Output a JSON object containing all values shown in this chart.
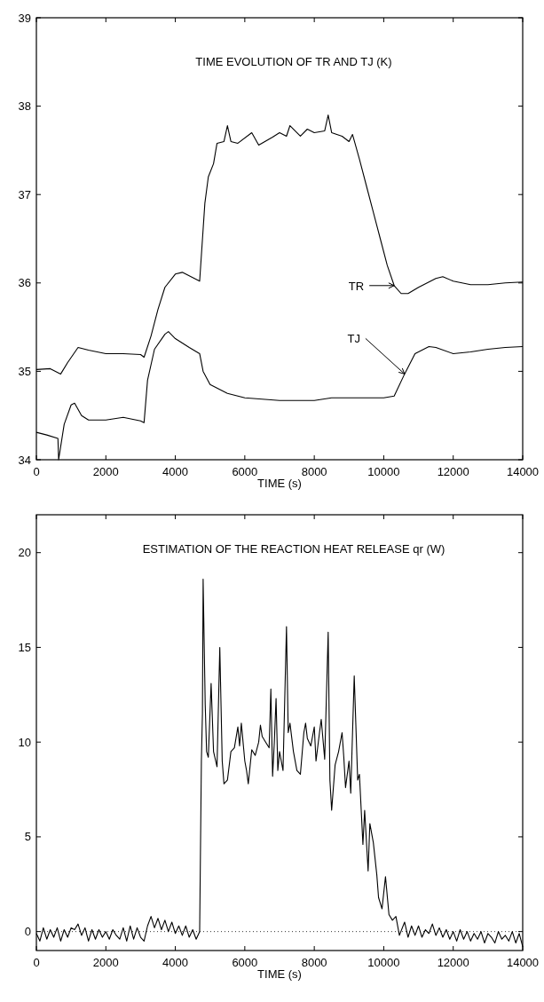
{
  "chart_data": [
    {
      "type": "line",
      "title": "TIME EVOLUTION OF TR AND TJ (K)",
      "xlabel": "TIME (s)",
      "xlim": [
        0,
        14000
      ],
      "xticks": [
        0,
        2000,
        4000,
        6000,
        8000,
        10000,
        12000,
        14000
      ],
      "ylim": [
        34,
        39
      ],
      "yticks": [
        34,
        35,
        36,
        37,
        38,
        39
      ],
      "grid": false,
      "annotations": [
        {
          "text": "TR",
          "x": 10300,
          "y": 35.97
        },
        {
          "text": "TJ",
          "x": 10600,
          "y": 34.97
        }
      ],
      "series": [
        {
          "color": "#000000",
          "x": [
            0,
            400,
            700,
            900,
            1200,
            1500,
            2000,
            2500,
            3000,
            3100,
            3300,
            3500,
            3700,
            4000,
            4200,
            4500,
            4700,
            4850,
            4950,
            5100,
            5200,
            5400,
            5500,
            5600,
            5800,
            6200,
            6400,
            6800,
            7000,
            7200,
            7300,
            7600,
            7800,
            8000,
            8300,
            8400,
            8500,
            8800,
            9000,
            9100,
            9300,
            9500,
            9700,
            9900,
            10100,
            10300,
            10500,
            10700,
            11000,
            11500,
            11700,
            12000,
            12500,
            13000,
            13500,
            14000
          ],
          "values": [
            35.02,
            35.03,
            34.97,
            35.1,
            35.27,
            35.24,
            35.2,
            35.2,
            35.19,
            35.16,
            35.4,
            35.7,
            35.95,
            36.1,
            36.12,
            36.06,
            36.02,
            36.9,
            37.2,
            37.35,
            37.58,
            37.6,
            37.78,
            37.6,
            37.58,
            37.7,
            37.56,
            37.65,
            37.7,
            37.66,
            37.78,
            37.66,
            37.74,
            37.7,
            37.72,
            37.9,
            37.7,
            37.66,
            37.6,
            37.68,
            37.4,
            37.1,
            36.8,
            36.5,
            36.2,
            35.97,
            35.88,
            35.88,
            35.95,
            36.05,
            36.07,
            36.02,
            35.98,
            35.98,
            36.0,
            36.01
          ]
        },
        {
          "color": "#000000",
          "x": [
            0,
            300,
            620,
            640,
            800,
            1000,
            1100,
            1300,
            1500,
            2000,
            2500,
            3000,
            3100,
            3200,
            3400,
            3700,
            3800,
            4000,
            4400,
            4700,
            4800,
            5000,
            5500,
            6000,
            7000,
            8000,
            8500,
            9000,
            10000,
            10300,
            10600,
            10900,
            11300,
            11500,
            12000,
            12500,
            13000,
            13500,
            14000
          ],
          "values": [
            34.31,
            34.28,
            34.24,
            34.0,
            34.4,
            34.62,
            34.64,
            34.5,
            34.45,
            34.45,
            34.48,
            34.44,
            34.42,
            34.9,
            35.25,
            35.42,
            35.45,
            35.37,
            35.27,
            35.2,
            35.0,
            34.85,
            34.75,
            34.7,
            34.67,
            34.67,
            34.7,
            34.7,
            34.7,
            34.72,
            34.97,
            35.2,
            35.28,
            35.27,
            35.2,
            35.22,
            35.25,
            35.27,
            35.28
          ]
        }
      ]
    },
    {
      "type": "line",
      "title": "ESTIMATION OF THE REACTION HEAT RELEASE qr (W)",
      "xlabel": "TIME (s)",
      "xlim": [
        0,
        14000
      ],
      "xticks": [
        0,
        2000,
        4000,
        6000,
        8000,
        10000,
        12000,
        14000
      ],
      "ylim": [
        -1,
        22
      ],
      "yticks": [
        0,
        5,
        10,
        15,
        20
      ],
      "grid": false,
      "ref_lines": [
        {
          "axis": "y",
          "value": 0,
          "label": null,
          "color": "#000000",
          "line_style": "dotted"
        }
      ],
      "series": [
        {
          "color": "#000000",
          "x": [
            0,
            100,
            200,
            300,
            400,
            500,
            600,
            700,
            800,
            900,
            1000,
            1100,
            1200,
            1300,
            1400,
            1500,
            1600,
            1700,
            1800,
            1900,
            2000,
            2100,
            2200,
            2300,
            2400,
            2500,
            2600,
            2700,
            2800,
            2900,
            3000,
            3100,
            3200,
            3300,
            3400,
            3500,
            3600,
            3700,
            3800,
            3900,
            4000,
            4100,
            4200,
            4300,
            4400,
            4500,
            4600,
            4700,
            4750,
            4780,
            4800,
            4860,
            4900,
            4950,
            5030,
            5100,
            5200,
            5280,
            5350,
            5400,
            5500,
            5600,
            5700,
            5800,
            5850,
            5900,
            6000,
            6050,
            6100,
            6200,
            6300,
            6400,
            6450,
            6500,
            6600,
            6700,
            6750,
            6800,
            6850,
            6900,
            6950,
            7000,
            7100,
            7200,
            7250,
            7300,
            7400,
            7500,
            7600,
            7700,
            7750,
            7800,
            7900,
            8000,
            8050,
            8150,
            8200,
            8300,
            8400,
            8450,
            8500,
            8600,
            8700,
            8800,
            8850,
            8900,
            9000,
            9050,
            9150,
            9250,
            9300,
            9400,
            9450,
            9550,
            9600,
            9700,
            9800,
            9850,
            9950,
            10050,
            10150,
            10250,
            10350,
            10450,
            10600,
            10700,
            10800,
            10900,
            11000,
            11100,
            11200,
            11300,
            11400,
            11500,
            11600,
            11700,
            11800,
            11900,
            12000,
            12100,
            12200,
            12300,
            12400,
            12500,
            12600,
            12700,
            12800,
            12900,
            13000,
            13100,
            13200,
            13300,
            13400,
            13500,
            13600,
            13700,
            13800,
            13900,
            14000
          ],
          "values": [
            -0.1,
            -0.5,
            0.2,
            -0.4,
            0.1,
            -0.3,
            0.2,
            -0.5,
            0.1,
            -0.3,
            0.2,
            0.1,
            0.4,
            -0.2,
            0.2,
            -0.5,
            0.1,
            -0.4,
            0.1,
            -0.3,
            0.0,
            -0.4,
            0.1,
            -0.2,
            -0.4,
            0.2,
            -0.5,
            0.3,
            -0.4,
            0.2,
            -0.3,
            -0.5,
            0.3,
            0.8,
            0.2,
            0.7,
            0.1,
            0.6,
            0.0,
            0.5,
            -0.1,
            0.3,
            -0.2,
            0.3,
            -0.3,
            0.1,
            -0.4,
            0.0,
            9.0,
            11.5,
            18.6,
            12,
            9.5,
            9.2,
            13.1,
            9.5,
            8.7,
            15.0,
            9,
            7.8,
            8.0,
            9.5,
            9.7,
            10.8,
            9.8,
            11.0,
            9.0,
            8.5,
            7.8,
            9.6,
            9.3,
            10.0,
            10.9,
            10.3,
            10.0,
            9.7,
            12.8,
            8.2,
            10.0,
            12.3,
            8.5,
            9.5,
            8.5,
            16.1,
            10.5,
            11,
            9.5,
            8.5,
            8.3,
            10.5,
            11.0,
            10.2,
            9.8,
            10.8,
            9.0,
            10.5,
            11.2,
            9.1,
            15.8,
            8.0,
            6.4,
            8.8,
            9.5,
            10.5,
            9.2,
            7.6,
            9.0,
            7.3,
            13.5,
            8.0,
            8.3,
            4.6,
            6.4,
            3.2,
            5.7,
            4.7,
            3.0,
            1.8,
            1.2,
            2.9,
            0.9,
            0.6,
            0.8,
            -0.2,
            0.5,
            -0.3,
            0.3,
            -0.2,
            0.3,
            -0.3,
            0.1,
            -0.1,
            0.4,
            -0.2,
            0.2,
            -0.3,
            0.1,
            -0.4,
            0.0,
            -0.5,
            0.1,
            -0.4,
            0.0,
            -0.5,
            -0.1,
            -0.4,
            0.0,
            -0.6,
            -0.1,
            -0.3,
            -0.6,
            0.0,
            -0.4,
            -0.2,
            -0.5,
            0.0,
            -0.6,
            -0.1,
            -0.8
          ]
        }
      ]
    }
  ]
}
